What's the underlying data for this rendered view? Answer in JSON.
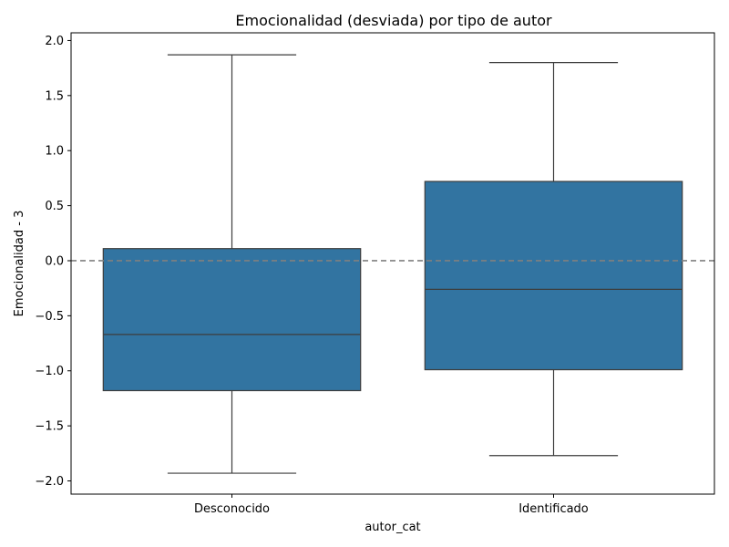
{
  "chart_data": {
    "type": "box",
    "title": "Emocionalidad (desviada) por tipo de autor",
    "xlabel": "autor_cat",
    "ylabel": "Emocionalidad - 3",
    "categories": [
      "Desconocido",
      "Identificado"
    ],
    "boxes": [
      {
        "category": "Desconocido",
        "whisker_low": -1.93,
        "q1": -1.18,
        "median": -0.67,
        "q3": 0.11,
        "whisker_high": 1.87
      },
      {
        "category": "Identificado",
        "whisker_low": -1.77,
        "q1": -0.99,
        "median": -0.26,
        "q3": 0.72,
        "whisker_high": 1.8
      }
    ],
    "reference_line": {
      "y": 0.0,
      "style": "dashed",
      "color": "#808080"
    },
    "ylim": [
      -2.12,
      2.07
    ],
    "yticks": [
      -2.0,
      -1.5,
      -1.0,
      -0.5,
      0.0,
      0.5,
      1.0,
      1.5,
      2.0
    ],
    "ytick_labels": [
      "−2.0",
      "−1.5",
      "−1.0",
      "−0.5",
      "0.0",
      "0.5",
      "1.0",
      "1.5",
      "2.0"
    ],
    "grid": false,
    "colors": {
      "box_fill": "#3274a1",
      "line": "#3d3d3d"
    }
  }
}
